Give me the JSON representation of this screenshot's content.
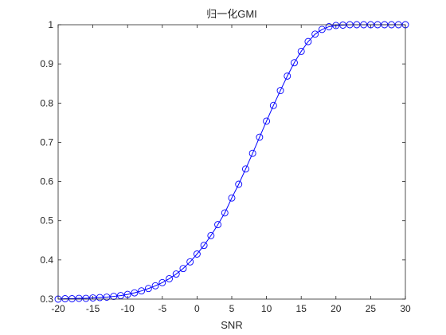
{
  "chart_data": {
    "type": "line",
    "title": "归一化GMI",
    "xlabel": "SNR",
    "ylabel": "",
    "xlim": [
      -20,
      30
    ],
    "ylim": [
      0.3,
      1
    ],
    "x_ticks": [
      -20,
      -15,
      -10,
      -5,
      0,
      5,
      10,
      15,
      20,
      25,
      30
    ],
    "y_ticks": [
      0.3,
      0.4,
      0.5,
      0.6,
      0.7,
      0.8,
      0.9,
      1
    ],
    "grid": false,
    "legend": "none",
    "series": [
      {
        "marker": "circle",
        "color": "#0000ff",
        "x": [
          -20,
          -19,
          -18,
          -17,
          -16,
          -15,
          -14,
          -13,
          -12,
          -11,
          -10,
          -9,
          -8,
          -7,
          -6,
          -5,
          -4,
          -3,
          -2,
          -1,
          0,
          1,
          2,
          3,
          4,
          5,
          6,
          7,
          8,
          9,
          10,
          11,
          12,
          13,
          14,
          15,
          16,
          17,
          18,
          19,
          20,
          21,
          22,
          23,
          24,
          25,
          26,
          27,
          28,
          29,
          30
        ],
        "values": [
          0.3,
          0.301,
          0.301,
          0.302,
          0.302,
          0.303,
          0.304,
          0.305,
          0.307,
          0.309,
          0.312,
          0.316,
          0.321,
          0.327,
          0.334,
          0.342,
          0.352,
          0.364,
          0.378,
          0.395,
          0.415,
          0.437,
          0.462,
          0.49,
          0.52,
          0.558,
          0.593,
          0.632,
          0.672,
          0.713,
          0.754,
          0.794,
          0.832,
          0.869,
          0.903,
          0.932,
          0.957,
          0.976,
          0.988,
          0.995,
          0.998,
          0.999,
          1,
          1,
          1,
          1,
          1,
          1,
          1,
          1,
          1
        ]
      }
    ]
  }
}
